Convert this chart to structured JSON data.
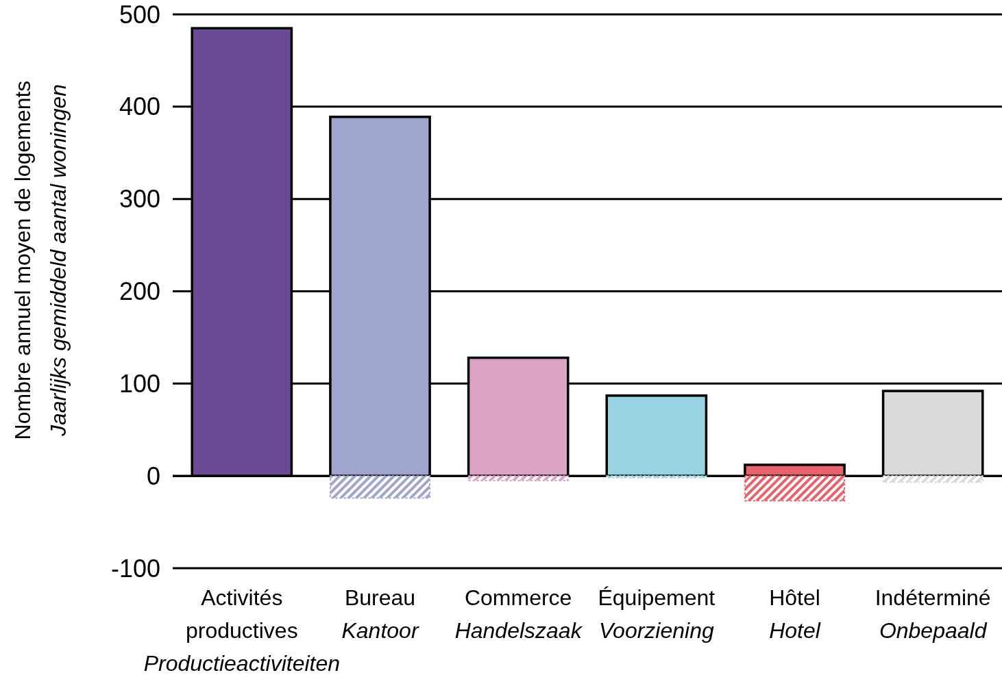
{
  "chart_data": {
    "type": "bar",
    "stacked": true,
    "ylabel": "Nombre annuel moyen de logements\nJaarlijks gemiddeld aantal woningen",
    "categories": [
      "Activités\nproductives\nProductieactiviteiten",
      "Bureau\nKantoor",
      "Commerce\nHandelszaak",
      "Équipement\nVoorziening",
      "Hôtel\nHotel",
      "Indéterminé\nOnbepaald"
    ],
    "series": [
      {
        "values": [
          485,
          389,
          128,
          87,
          12,
          92
        ],
        "colors": [
          "#6a4a92",
          "#a0a5d0",
          "#dba3c5",
          "#97d3e1",
          "#e8626c",
          "#d9d9da"
        ],
        "line_style": "solid"
      },
      {
        "values": [
          null,
          -24,
          -5,
          -2,
          -27,
          -7
        ],
        "colors": [
          null,
          "#a0a5d0",
          "#dba3c5",
          "#97d3e1",
          "#e8626c",
          "#d9d9da"
        ],
        "line_style": "dotted"
      }
    ],
    "ylim": [
      -100,
      500
    ],
    "yticks": [
      -100,
      0,
      100,
      200,
      300,
      400,
      500
    ],
    "grid": "y"
  }
}
